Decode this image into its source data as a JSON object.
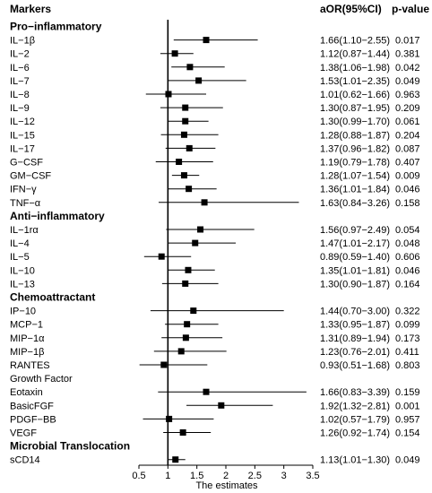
{
  "chart_data": {
    "type": "forest",
    "xlabel": "The estimates",
    "xlim": [
      0.5,
      3.5
    ],
    "xticks": [
      0.5,
      1,
      1.5,
      2,
      2.5,
      3,
      3.5
    ],
    "xtick_labels": [
      "0.5",
      "1",
      "1.5",
      "2",
      "2.5",
      "3",
      "3.5"
    ],
    "reference_line": 1,
    "columns": {
      "markers": "Markers",
      "aor": "aOR(95%CI)",
      "p": "p-value"
    },
    "rows": [
      {
        "kind": "group",
        "label": "Pro−inflammatory"
      },
      {
        "kind": "item",
        "label": "IL−1β",
        "est": 1.66,
        "lo": 1.1,
        "hi": 2.55,
        "ci": "1.66(1.10−2.55)",
        "p": "0.017"
      },
      {
        "kind": "item",
        "label": "IL−2",
        "est": 1.12,
        "lo": 0.87,
        "hi": 1.44,
        "ci": "1.12(0.87−1.44)",
        "p": "0.381"
      },
      {
        "kind": "item",
        "label": "IL−6",
        "est": 1.38,
        "lo": 1.06,
        "hi": 1.98,
        "ci": "1.38(1.06−1.98)",
        "p": "0.042"
      },
      {
        "kind": "item",
        "label": "IL−7",
        "est": 1.53,
        "lo": 1.01,
        "hi": 2.35,
        "ci": "1.53(1.01−2.35)",
        "p": "0.049"
      },
      {
        "kind": "item",
        "label": "IL−8",
        "est": 1.01,
        "lo": 0.62,
        "hi": 1.66,
        "ci": "1.01(0.62−1.66)",
        "p": "0.963"
      },
      {
        "kind": "item",
        "label": "IL−9",
        "est": 1.3,
        "lo": 0.87,
        "hi": 1.95,
        "ci": "1.30(0.87−1.95)",
        "p": "0.209"
      },
      {
        "kind": "item",
        "label": "IL−12",
        "est": 1.3,
        "lo": 0.99,
        "hi": 1.7,
        "ci": "1.30(0.99−1.70)",
        "p": "0.061"
      },
      {
        "kind": "item",
        "label": "IL−15",
        "est": 1.28,
        "lo": 0.88,
        "hi": 1.87,
        "ci": "1.28(0.88−1.87)",
        "p": "0.204"
      },
      {
        "kind": "item",
        "label": "IL−17",
        "est": 1.37,
        "lo": 0.96,
        "hi": 1.82,
        "ci": "1.37(0.96−1.82)",
        "p": "0.087"
      },
      {
        "kind": "item",
        "label": "G−CSF",
        "est": 1.19,
        "lo": 0.79,
        "hi": 1.78,
        "ci": "1.19(0.79−1.78)",
        "p": "0.407"
      },
      {
        "kind": "item",
        "label": "GM−CSF",
        "est": 1.28,
        "lo": 1.07,
        "hi": 1.54,
        "ci": "1.28(1.07−1.54)",
        "p": "0.009"
      },
      {
        "kind": "item",
        "label": "IFN−γ",
        "est": 1.36,
        "lo": 1.01,
        "hi": 1.84,
        "ci": "1.36(1.01−1.84)",
        "p": "0.046"
      },
      {
        "kind": "item",
        "label": "TNF−α",
        "est": 1.63,
        "lo": 0.84,
        "hi": 3.26,
        "ci": "1.63(0.84−3.26)",
        "p": "0.158"
      },
      {
        "kind": "group",
        "label": "Anti−inflammatory"
      },
      {
        "kind": "item",
        "label": "IL−1rα",
        "est": 1.56,
        "lo": 0.97,
        "hi": 2.49,
        "ci": "1.56(0.97−2.49)",
        "p": "0.054"
      },
      {
        "kind": "item",
        "label": "IL−4",
        "est": 1.47,
        "lo": 1.01,
        "hi": 2.17,
        "ci": "1.47(1.01−2.17)",
        "p": "0.048"
      },
      {
        "kind": "item",
        "label": "IL−5",
        "est": 0.89,
        "lo": 0.59,
        "hi": 1.4,
        "ci": "0.89(0.59−1.40)",
        "p": "0.606"
      },
      {
        "kind": "item",
        "label": "IL−10",
        "est": 1.35,
        "lo": 1.01,
        "hi": 1.81,
        "ci": "1.35(1.01−1.81)",
        "p": "0.046"
      },
      {
        "kind": "item",
        "label": "IL−13",
        "est": 1.3,
        "lo": 0.9,
        "hi": 1.87,
        "ci": "1.30(0.90−1.87)",
        "p": "0.164"
      },
      {
        "kind": "group",
        "label": "Chemoattractant"
      },
      {
        "kind": "item",
        "label": "IP−10",
        "est": 1.44,
        "lo": 0.7,
        "hi": 3.0,
        "ci": "1.44(0.70−3.00)",
        "p": "0.322"
      },
      {
        "kind": "item",
        "label": "MCP−1",
        "est": 1.33,
        "lo": 0.95,
        "hi": 1.87,
        "ci": "1.33(0.95−1.87)",
        "p": "0.099"
      },
      {
        "kind": "item",
        "label": "MIP−1α",
        "est": 1.31,
        "lo": 0.89,
        "hi": 1.94,
        "ci": "1.31(0.89−1.94)",
        "p": "0.173"
      },
      {
        "kind": "item",
        "label": "MIP−1β",
        "est": 1.23,
        "lo": 0.76,
        "hi": 2.01,
        "ci": "1.23(0.76−2.01)",
        "p": "0.411"
      },
      {
        "kind": "item",
        "label": "RANTES",
        "est": 0.93,
        "lo": 0.51,
        "hi": 1.68,
        "ci": "0.93(0.51−1.68)",
        "p": "0.803"
      },
      {
        "kind": "plain",
        "label": "Growth Factor"
      },
      {
        "kind": "item",
        "label": "Eotaxin",
        "est": 1.66,
        "lo": 0.83,
        "hi": 3.39,
        "ci": "1.66(0.83−3.39)",
        "p": "0.159"
      },
      {
        "kind": "item",
        "label": "BasicFGF",
        "est": 1.92,
        "lo": 1.32,
        "hi": 2.81,
        "ci": "1.92(1.32−2.81)",
        "p": "0.001"
      },
      {
        "kind": "item",
        "label": "PDGF−BB",
        "est": 1.02,
        "lo": 0.57,
        "hi": 1.79,
        "ci": "1.02(0.57−1.79)",
        "p": "0.957"
      },
      {
        "kind": "item",
        "label": "VEGF",
        "est": 1.26,
        "lo": 0.92,
        "hi": 1.74,
        "ci": "1.26(0.92−1.74)",
        "p": "0.154"
      },
      {
        "kind": "group",
        "label": "Microbial Translocation"
      },
      {
        "kind": "item",
        "label": "sCD14",
        "est": 1.13,
        "lo": 1.01,
        "hi": 1.3,
        "ci": "1.13(1.01−1.30)",
        "p": "0.049"
      }
    ]
  }
}
